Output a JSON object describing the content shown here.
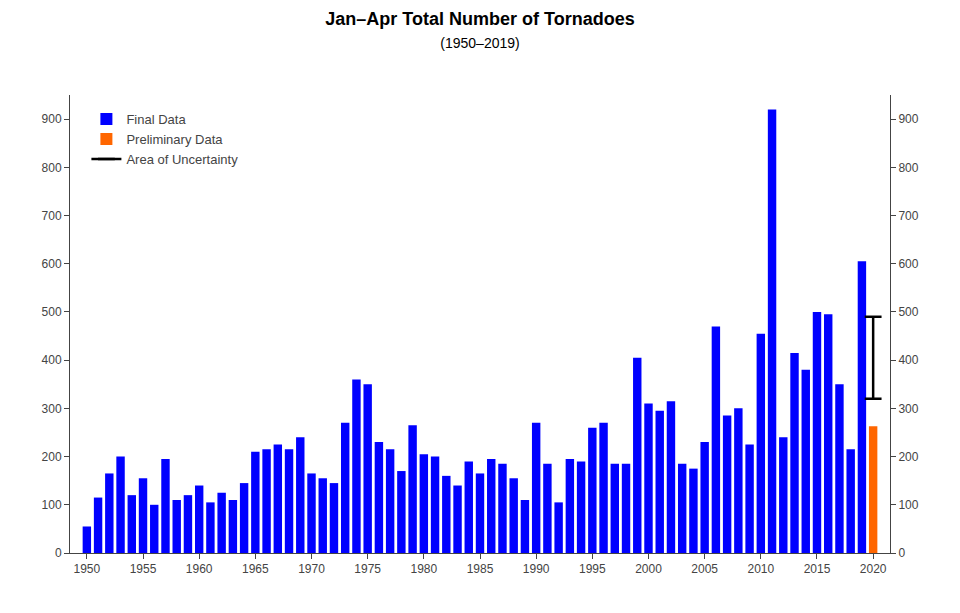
{
  "chart_data": {
    "type": "bar",
    "title": "Jan–Apr Total Number of Tornadoes",
    "subtitle": "(1950–2019)",
    "series": [
      {
        "name": "Final Data",
        "type": "bar",
        "color": "#0000FF",
        "x": [
          1950,
          1951,
          1952,
          1953,
          1954,
          1955,
          1956,
          1957,
          1958,
          1959,
          1960,
          1961,
          1962,
          1963,
          1964,
          1965,
          1966,
          1967,
          1968,
          1969,
          1970,
          1971,
          1972,
          1973,
          1974,
          1975,
          1976,
          1977,
          1978,
          1979,
          1980,
          1981,
          1982,
          1983,
          1984,
          1985,
          1986,
          1987,
          1988,
          1989,
          1990,
          1991,
          1992,
          1993,
          1994,
          1995,
          1996,
          1997,
          1998,
          1999,
          2000,
          2001,
          2002,
          2003,
          2004,
          2005,
          2006,
          2007,
          2008,
          2009,
          2010,
          2011,
          2012,
          2013,
          2014,
          2015,
          2016,
          2017,
          2018,
          2019
        ],
        "values": [
          55,
          115,
          165,
          200,
          120,
          155,
          100,
          195,
          110,
          120,
          140,
          105,
          125,
          110,
          145,
          210,
          215,
          225,
          215,
          240,
          165,
          155,
          145,
          270,
          360,
          350,
          230,
          215,
          170,
          265,
          205,
          200,
          160,
          140,
          190,
          165,
          195,
          185,
          155,
          110,
          270,
          185,
          105,
          195,
          190,
          260,
          270,
          185,
          185,
          405,
          310,
          295,
          315,
          185,
          175,
          230,
          470,
          285,
          300,
          225,
          455,
          920,
          240,
          415,
          380,
          500,
          495,
          350,
          215,
          605
        ]
      },
      {
        "name": "Preliminary Data",
        "type": "bar",
        "color": "#FF6600",
        "x": [
          2020
        ],
        "values": [
          263
        ]
      },
      {
        "name": "Area of Uncertainty",
        "type": "error_bar",
        "color": "#000000",
        "x": [
          2020
        ],
        "low": [
          320
        ],
        "high": [
          490
        ]
      }
    ],
    "xlim": [
      1948.5,
      2021.5
    ],
    "xticks": [
      1950,
      1955,
      1960,
      1965,
      1970,
      1975,
      1980,
      1985,
      1990,
      1995,
      2000,
      2005,
      2010,
      2015,
      2020
    ],
    "ylim": [
      0,
      950
    ],
    "yticks": [
      0,
      100,
      200,
      300,
      400,
      500,
      600,
      700,
      800,
      900
    ],
    "y2lim": [
      0,
      950
    ],
    "y2ticks": [
      0,
      100,
      200,
      300,
      400,
      500,
      600,
      700,
      800,
      900
    ],
    "grid": false,
    "legend": "upper left"
  }
}
